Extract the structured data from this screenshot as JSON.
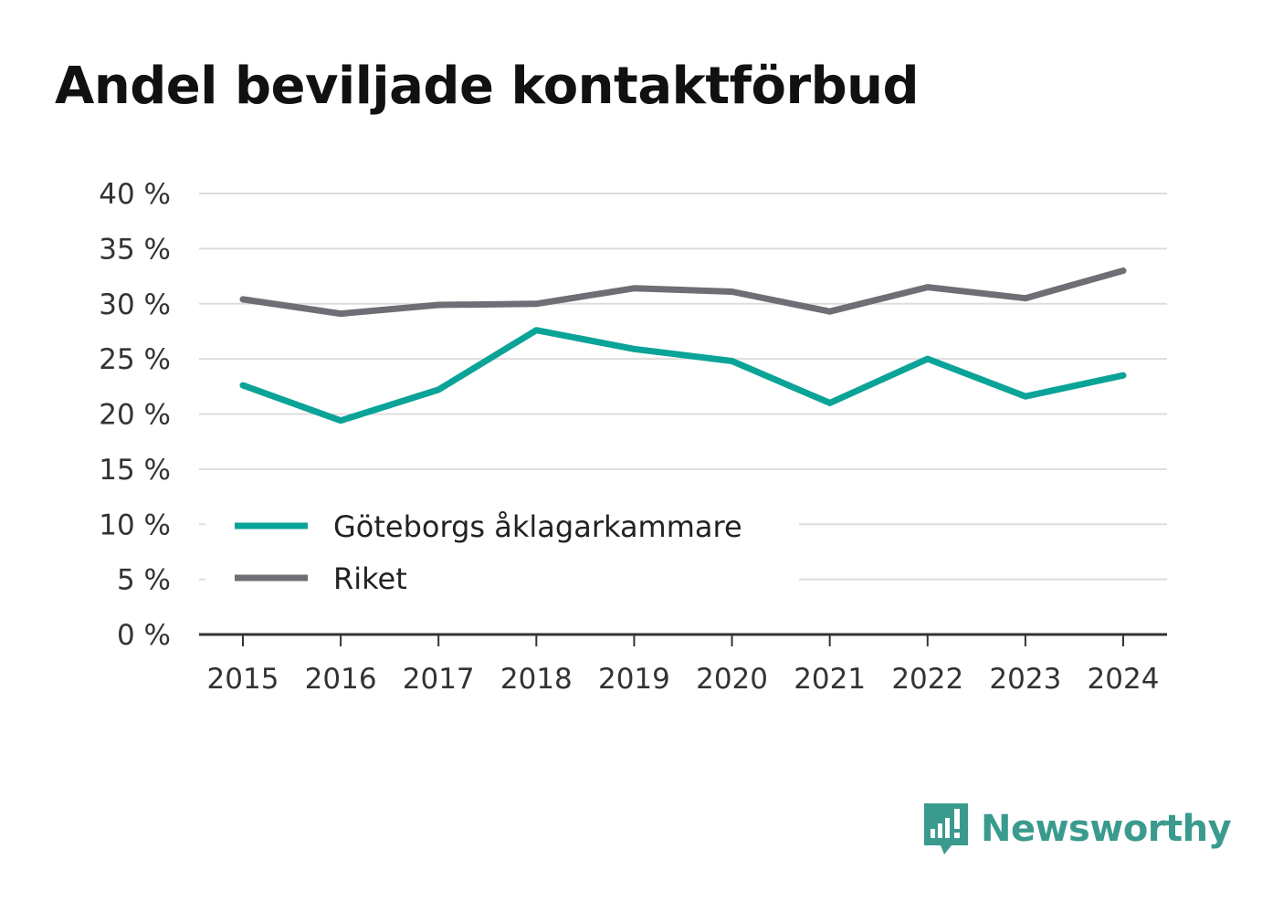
{
  "title": "Andel beviljade kontaktförbud",
  "brand": {
    "name": "Newsworthy",
    "icon": "newsworthy-logo-icon"
  },
  "colors": {
    "series_goteborg": "#0aa398",
    "series_riket": "#6e6e74",
    "grid": "#dddddd",
    "axis": "#333333",
    "brand": "#3a9a8e"
  },
  "chart_data": {
    "type": "line",
    "x": [
      2015,
      2016,
      2017,
      2018,
      2019,
      2020,
      2021,
      2022,
      2023,
      2024
    ],
    "series": [
      {
        "name": "Göteborgs åklagarkammare",
        "color": "#0aa398",
        "values": [
          22.6,
          19.4,
          22.2,
          27.6,
          25.9,
          24.8,
          21.0,
          25.0,
          21.6,
          23.5
        ]
      },
      {
        "name": "Riket",
        "color": "#6e6e74",
        "values": [
          30.4,
          29.1,
          29.9,
          30.0,
          31.4,
          31.1,
          29.3,
          31.5,
          30.5,
          33.0
        ]
      }
    ],
    "yticks": [
      "0 %",
      "5 %",
      "10 %",
      "15 %",
      "20 %",
      "25 %",
      "30 %",
      "35 %",
      "40 %"
    ],
    "ylim": [
      0,
      40
    ],
    "xlabel": "",
    "ylabel": "",
    "grid": true,
    "legend_position": "bottom-left"
  }
}
